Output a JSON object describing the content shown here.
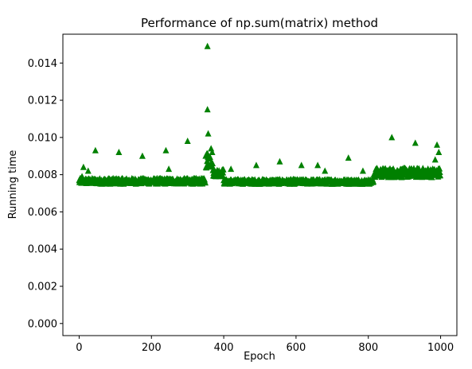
{
  "chart_data": {
    "type": "scatter",
    "title": "Performance of np.sum(matrix) method",
    "xlabel": "Epoch",
    "ylabel": "Running time",
    "xlim": [
      -45,
      1045
    ],
    "ylim": [
      -0.00065,
      0.01555
    ],
    "x_ticks": [
      0,
      200,
      400,
      600,
      800,
      1000
    ],
    "x_tick_labels": [
      "0",
      "200",
      "400",
      "600",
      "800",
      "1000"
    ],
    "y_ticks": [
      0.0,
      0.002,
      0.004,
      0.006,
      0.008,
      0.01,
      0.012,
      0.014
    ],
    "y_tick_labels": [
      "0.000",
      "0.002",
      "0.004",
      "0.006",
      "0.008",
      "0.010",
      "0.012",
      "0.014"
    ],
    "grid": false,
    "legend": "none",
    "marker": "triangle-up",
    "color": "#008000",
    "series": [
      {
        "segments": [
          {
            "x_start": 0,
            "x_end": 349,
            "base": 0.00765,
            "spread": 0.0003
          },
          {
            "x_start": 350,
            "x_end": 369,
            "base": 0.0088,
            "spread": 0.0009
          },
          {
            "x_start": 370,
            "x_end": 399,
            "base": 0.0081,
            "spread": 0.0004
          },
          {
            "x_start": 400,
            "x_end": 814,
            "base": 0.00762,
            "spread": 0.00025
          },
          {
            "x_start": 815,
            "x_end": 999,
            "base": 0.0081,
            "spread": 0.0005
          }
        ],
        "outliers": [
          {
            "x": 8,
            "y": 0.0079
          },
          {
            "x": 12,
            "y": 0.0084
          },
          {
            "x": 25,
            "y": 0.0082
          },
          {
            "x": 45,
            "y": 0.0093
          },
          {
            "x": 110,
            "y": 0.0092
          },
          {
            "x": 175,
            "y": 0.009
          },
          {
            "x": 240,
            "y": 0.0093
          },
          {
            "x": 248,
            "y": 0.0083
          },
          {
            "x": 300,
            "y": 0.0098
          },
          {
            "x": 355,
            "y": 0.0149
          },
          {
            "x": 355,
            "y": 0.0115
          },
          {
            "x": 357,
            "y": 0.0102
          },
          {
            "x": 360,
            "y": 0.0089
          },
          {
            "x": 365,
            "y": 0.0094
          },
          {
            "x": 368,
            "y": 0.0092
          },
          {
            "x": 420,
            "y": 0.0083
          },
          {
            "x": 490,
            "y": 0.0085
          },
          {
            "x": 555,
            "y": 0.0087
          },
          {
            "x": 615,
            "y": 0.0085
          },
          {
            "x": 660,
            "y": 0.0085
          },
          {
            "x": 680,
            "y": 0.0082
          },
          {
            "x": 745,
            "y": 0.0089
          },
          {
            "x": 785,
            "y": 0.0082
          },
          {
            "x": 865,
            "y": 0.01
          },
          {
            "x": 930,
            "y": 0.0097
          },
          {
            "x": 990,
            "y": 0.0096
          },
          {
            "x": 995,
            "y": 0.0092
          },
          {
            "x": 985,
            "y": 0.0088
          }
        ]
      }
    ]
  }
}
